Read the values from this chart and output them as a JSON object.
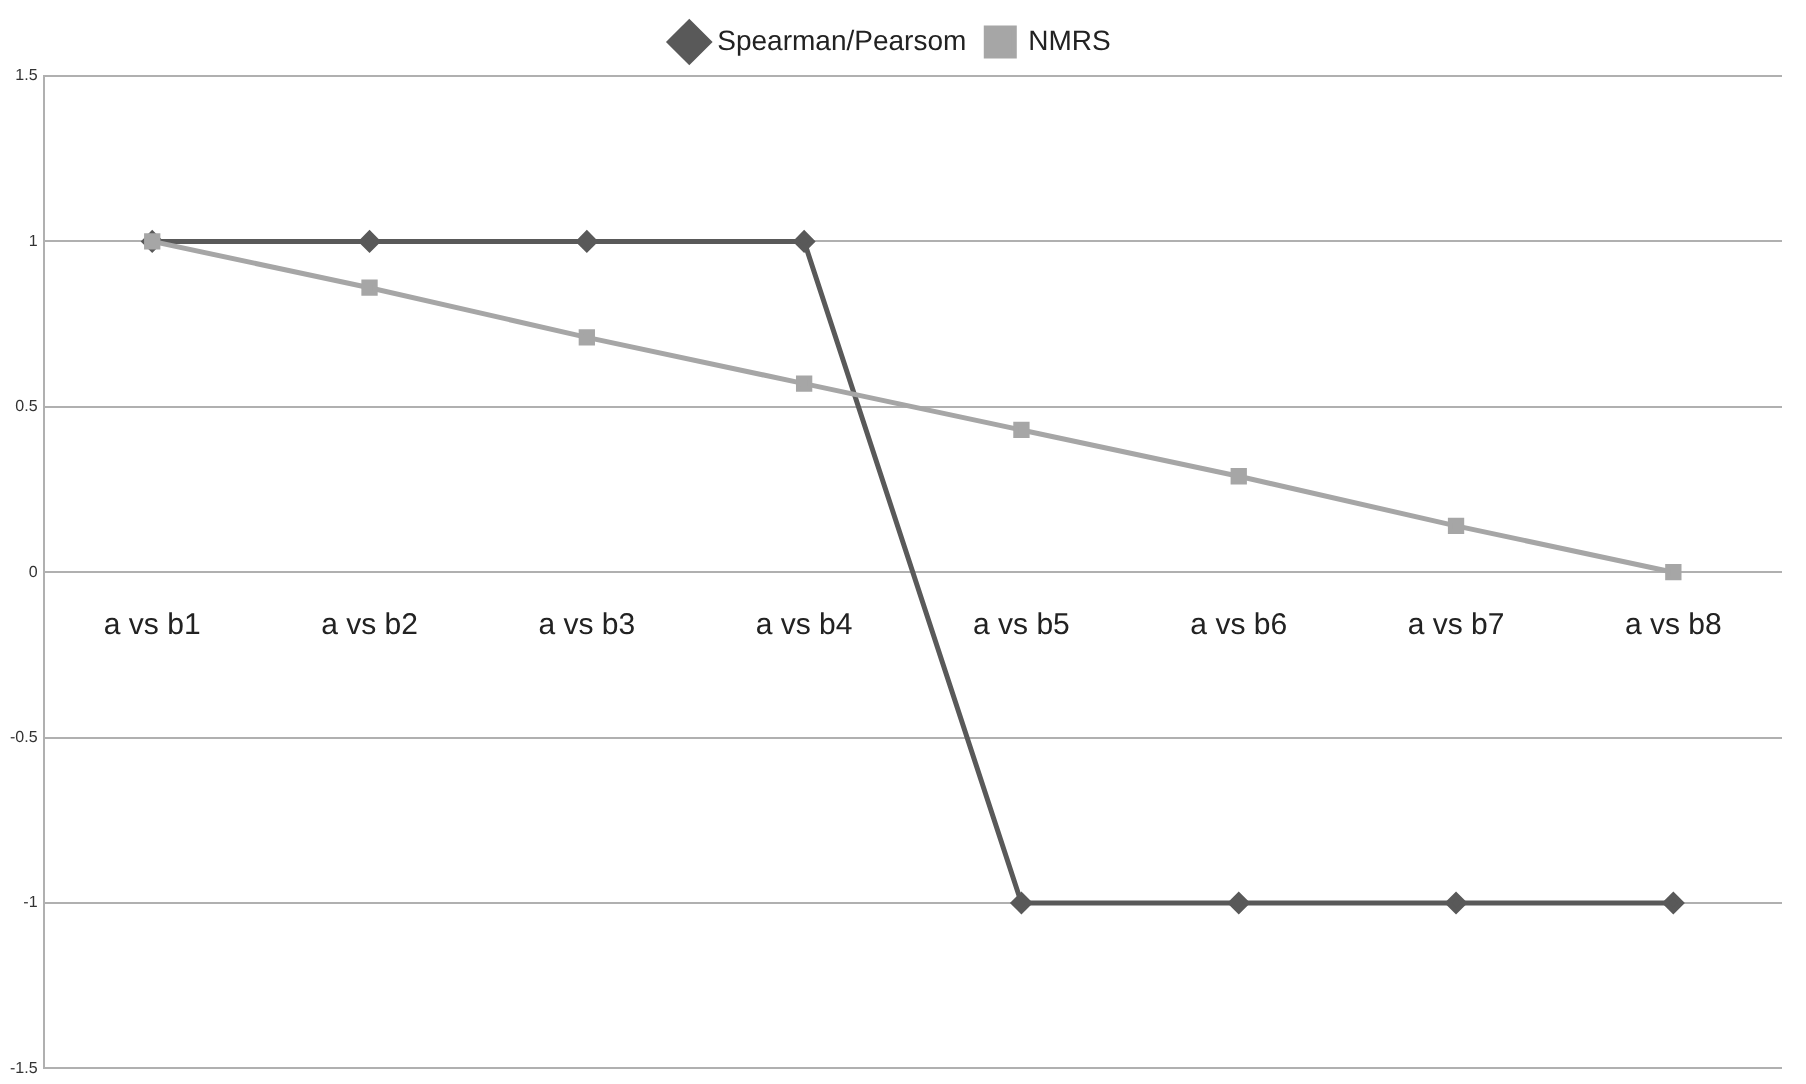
{
  "chart_data": {
    "type": "line",
    "categories": [
      "a vs b1",
      "a vs b2",
      "a vs b3",
      "a vs b4",
      "a vs b5",
      "a vs b6",
      "a vs b7",
      "a vs b8"
    ],
    "series": [
      {
        "name": "Spearman/Pearsom",
        "color": "#595959",
        "marker": "diamond",
        "values": [
          1,
          1,
          1,
          1,
          -1,
          -1,
          -1,
          -1
        ]
      },
      {
        "name": "NMRS",
        "color": "#a6a6a6",
        "marker": "square",
        "values": [
          1,
          0.86,
          0.71,
          0.57,
          0.43,
          0.29,
          0.14,
          0
        ]
      }
    ],
    "ylim": [
      -1.5,
      1.5
    ],
    "yticks": [
      -1.5,
      -1,
      -0.5,
      0,
      0.5,
      1,
      1.5
    ],
    "grid": "y",
    "legend": "top",
    "line_style": "solid"
  }
}
